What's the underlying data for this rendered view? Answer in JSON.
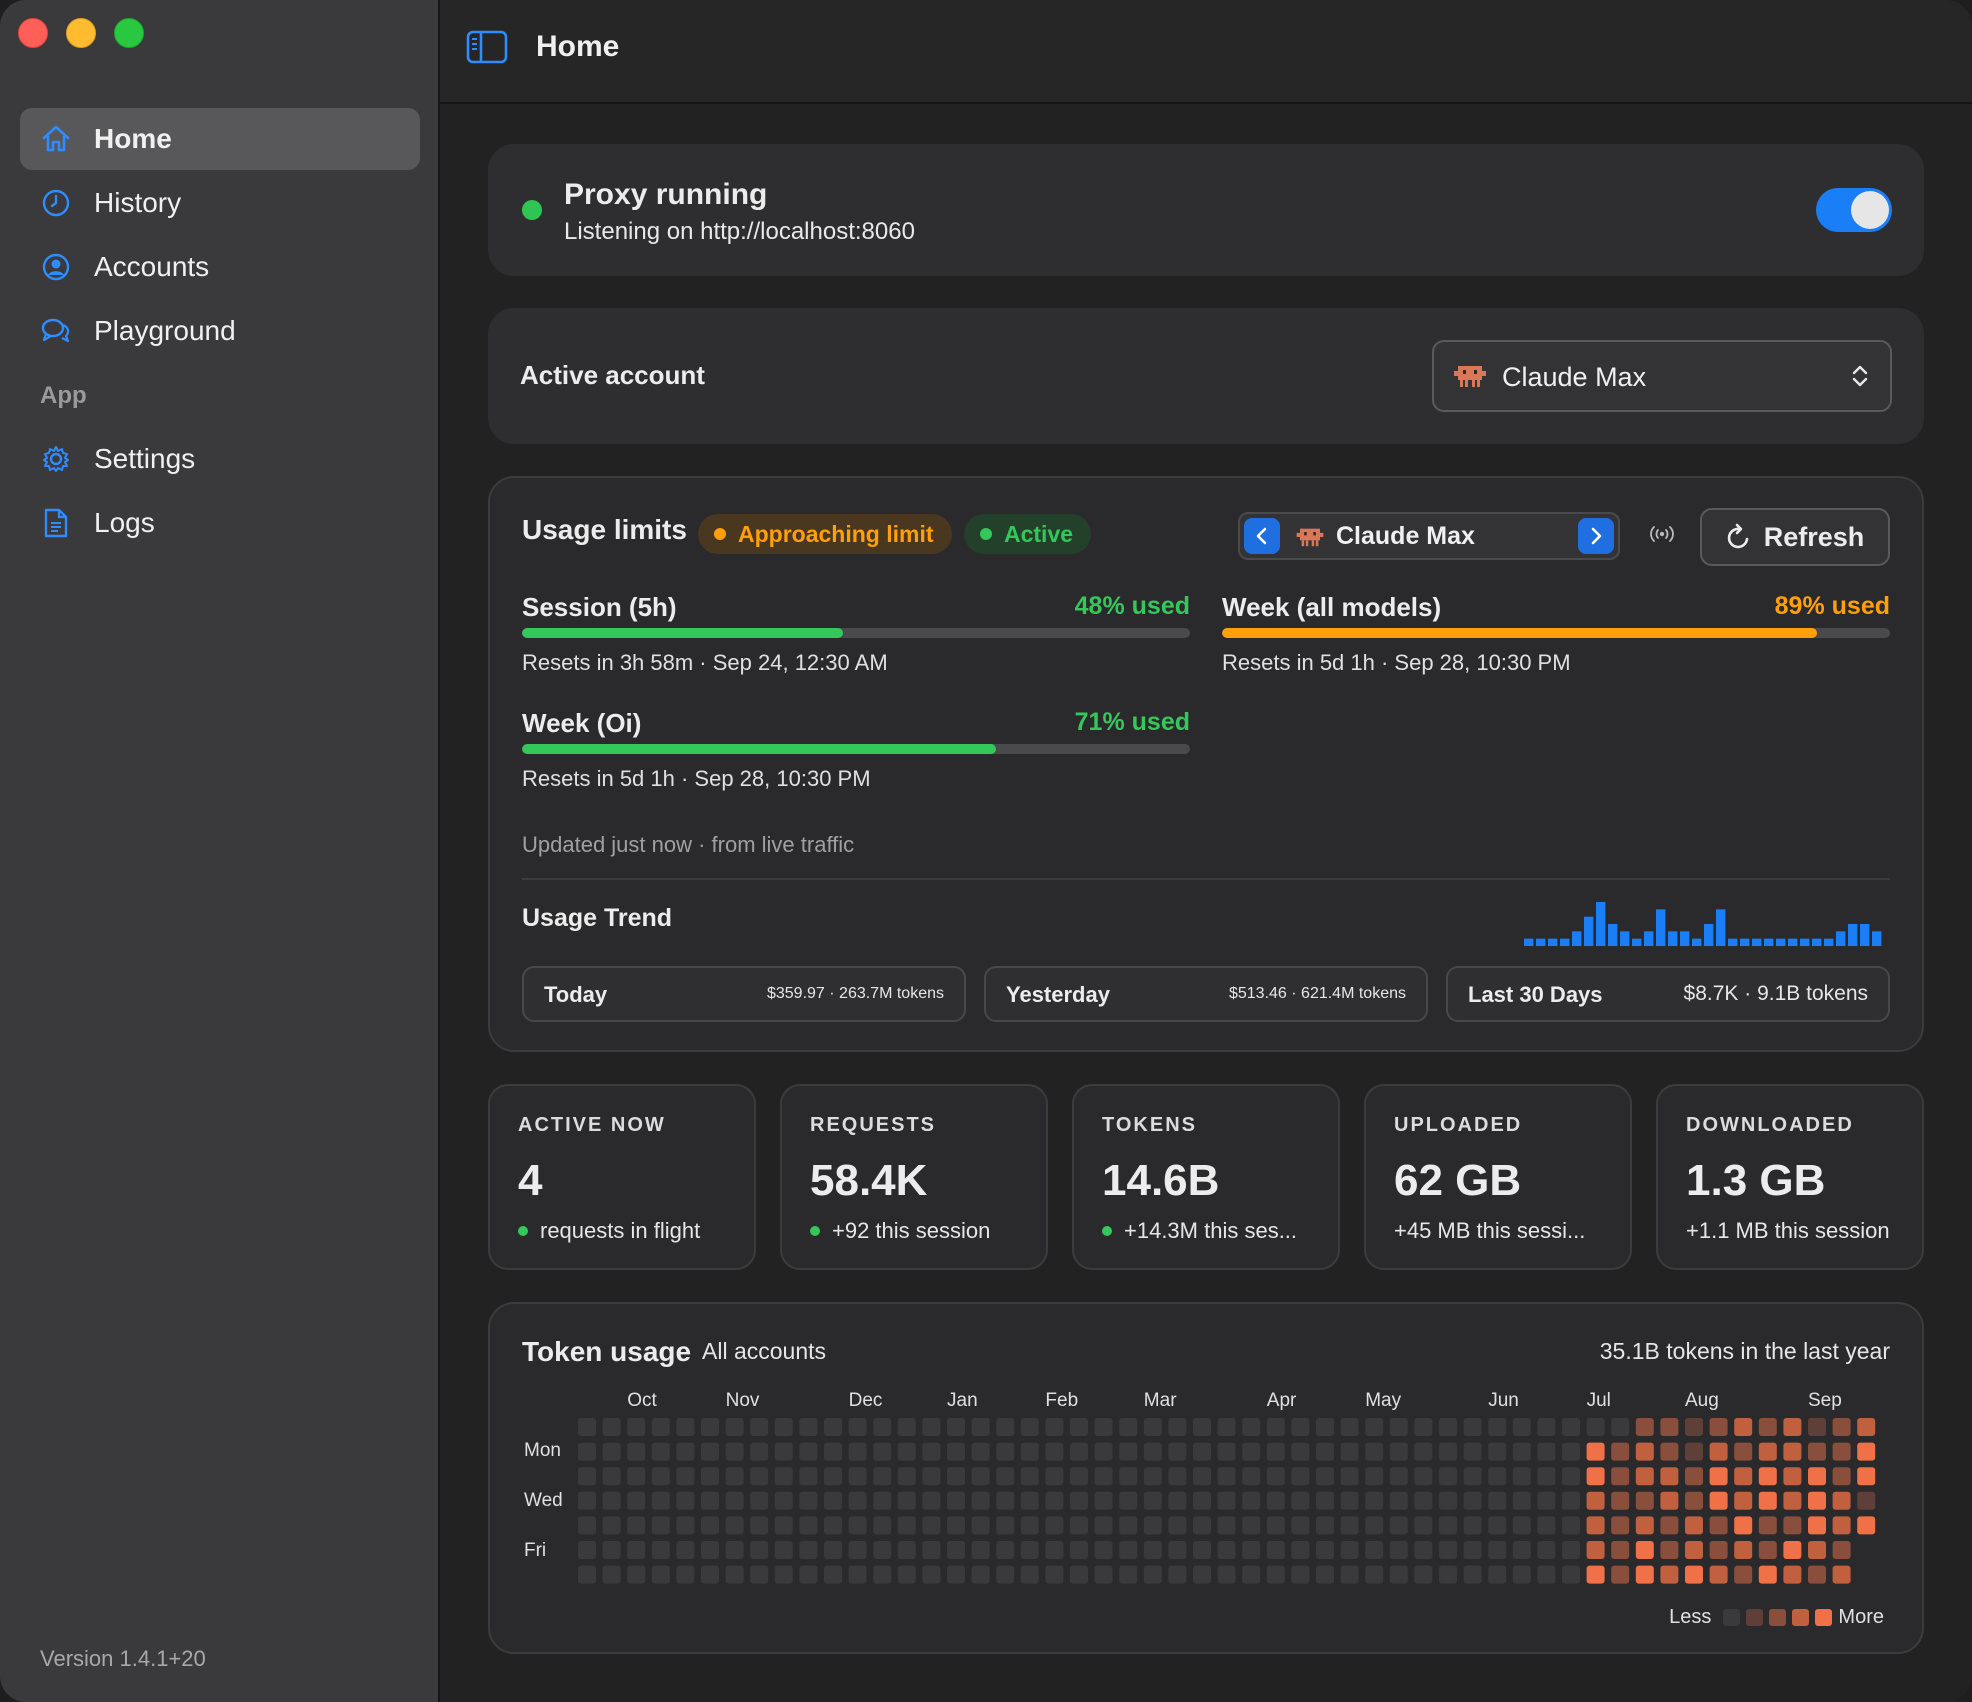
{
  "sidebar": {
    "items": [
      {
        "label": "Home",
        "icon": "home-icon"
      },
      {
        "label": "History",
        "icon": "clock-icon"
      },
      {
        "label": "Accounts",
        "icon": "person-circle-icon"
      },
      {
        "label": "Playground",
        "icon": "chat-bubbles-icon"
      }
    ],
    "section_app": "App",
    "app_items": [
      {
        "label": "Settings",
        "icon": "gear-icon"
      },
      {
        "label": "Logs",
        "icon": "document-icon"
      }
    ],
    "version": "Version 1.4.1+20"
  },
  "header": {
    "title": "Home"
  },
  "proxy": {
    "title": "Proxy running",
    "subtitle": "Listening on http://localhost:8060",
    "enabled": true
  },
  "account": {
    "label": "Active account",
    "selected": "Claude Max"
  },
  "usage": {
    "title": "Usage limits",
    "badge_warning": "Approaching limit",
    "badge_active": "Active",
    "account_name": "Claude Max",
    "refresh_label": "Refresh",
    "meters": [
      {
        "label": "Session (5h)",
        "pct_text": "48% used",
        "pct": 0.48,
        "reset": "Resets in 3h 58m · Sep 24, 12:30 AM",
        "status": "green"
      },
      {
        "label": "Week (all models)",
        "pct_text": "89% used",
        "pct": 0.89,
        "reset": "Resets in 5d 1h · Sep 28, 10:30 PM",
        "status": "orange"
      },
      {
        "label": "Week (Oi)",
        "pct_text": "71% used",
        "pct": 0.71,
        "reset": "Resets in 5d 1h · Sep 28, 10:30 PM",
        "status": "green"
      }
    ],
    "updated": "Updated just now · from live traffic",
    "trend_title": "Usage Trend",
    "trend_values": [
      1,
      1,
      1,
      1,
      2,
      4,
      6,
      3,
      2,
      1,
      2,
      5,
      2,
      2,
      1,
      3,
      5,
      1,
      1,
      1,
      1,
      1,
      1,
      1,
      1,
      1,
      2,
      3,
      3,
      2
    ],
    "pills": [
      {
        "label": "Today",
        "value": "$359.97 · 263.7M tokens"
      },
      {
        "label": "Yesterday",
        "value": "$513.46 · 621.4M tokens"
      },
      {
        "label": "Last 30 Days",
        "value": "$8.7K · 9.1B tokens"
      }
    ]
  },
  "stats": [
    {
      "label": "ACTIVE NOW",
      "value": "4",
      "sub": "requests in flight",
      "dot": true
    },
    {
      "label": "REQUESTS",
      "value": "58.4K",
      "sub": "+92 this session",
      "dot": true
    },
    {
      "label": "TOKENS",
      "value": "14.6B",
      "sub": "+14.3M this ses...",
      "dot": true
    },
    {
      "label": "UPLOADED",
      "value": "62 GB",
      "sub": "+45 MB this sessi...",
      "dot": false
    },
    {
      "label": "DOWNLOADED",
      "value": "1.3 GB",
      "sub": "+1.1 MB this session",
      "dot": false
    }
  ],
  "token_usage": {
    "title": "Token usage",
    "scope": "All accounts",
    "total": "35.1B tokens in the last year",
    "months": [
      "Oct",
      "Nov",
      "Dec",
      "Jan",
      "Feb",
      "Mar",
      "Apr",
      "May",
      "Jun",
      "Jul",
      "Aug",
      "Sep"
    ],
    "month_weeks": [
      2,
      6,
      11,
      15,
      19,
      23,
      28,
      32,
      37,
      41,
      45,
      50
    ],
    "days": [
      "Mon",
      "Wed",
      "Fri"
    ],
    "legend_less": "Less",
    "legend_more": "More",
    "colors": [
      "#3a3a3c",
      "#5e4038",
      "#8a4e3c",
      "#c0603f",
      "#f07048"
    ],
    "weeks_total": 53,
    "active_from_week": 41,
    "levels_recent": [
      [
        0,
        0,
        2,
        2,
        1,
        2,
        3,
        2,
        3,
        1,
        2,
        3,
        3
      ],
      [
        4,
        2,
        3,
        2,
        1,
        3,
        2,
        3,
        3,
        2,
        2,
        4,
        0
      ],
      [
        4,
        2,
        3,
        3,
        2,
        4,
        3,
        4,
        3,
        4,
        2,
        4,
        0
      ],
      [
        3,
        2,
        2,
        3,
        2,
        4,
        3,
        4,
        3,
        4,
        3,
        1,
        0
      ],
      [
        3,
        2,
        3,
        2,
        3,
        2,
        4,
        2,
        2,
        4,
        3,
        4,
        0
      ],
      [
        3,
        2,
        4,
        2,
        3,
        2,
        3,
        2,
        4,
        3,
        2,
        0,
        0
      ],
      [
        4,
        2,
        4,
        3,
        4,
        3,
        2,
        4,
        3,
        2,
        3,
        0,
        0
      ]
    ]
  }
}
